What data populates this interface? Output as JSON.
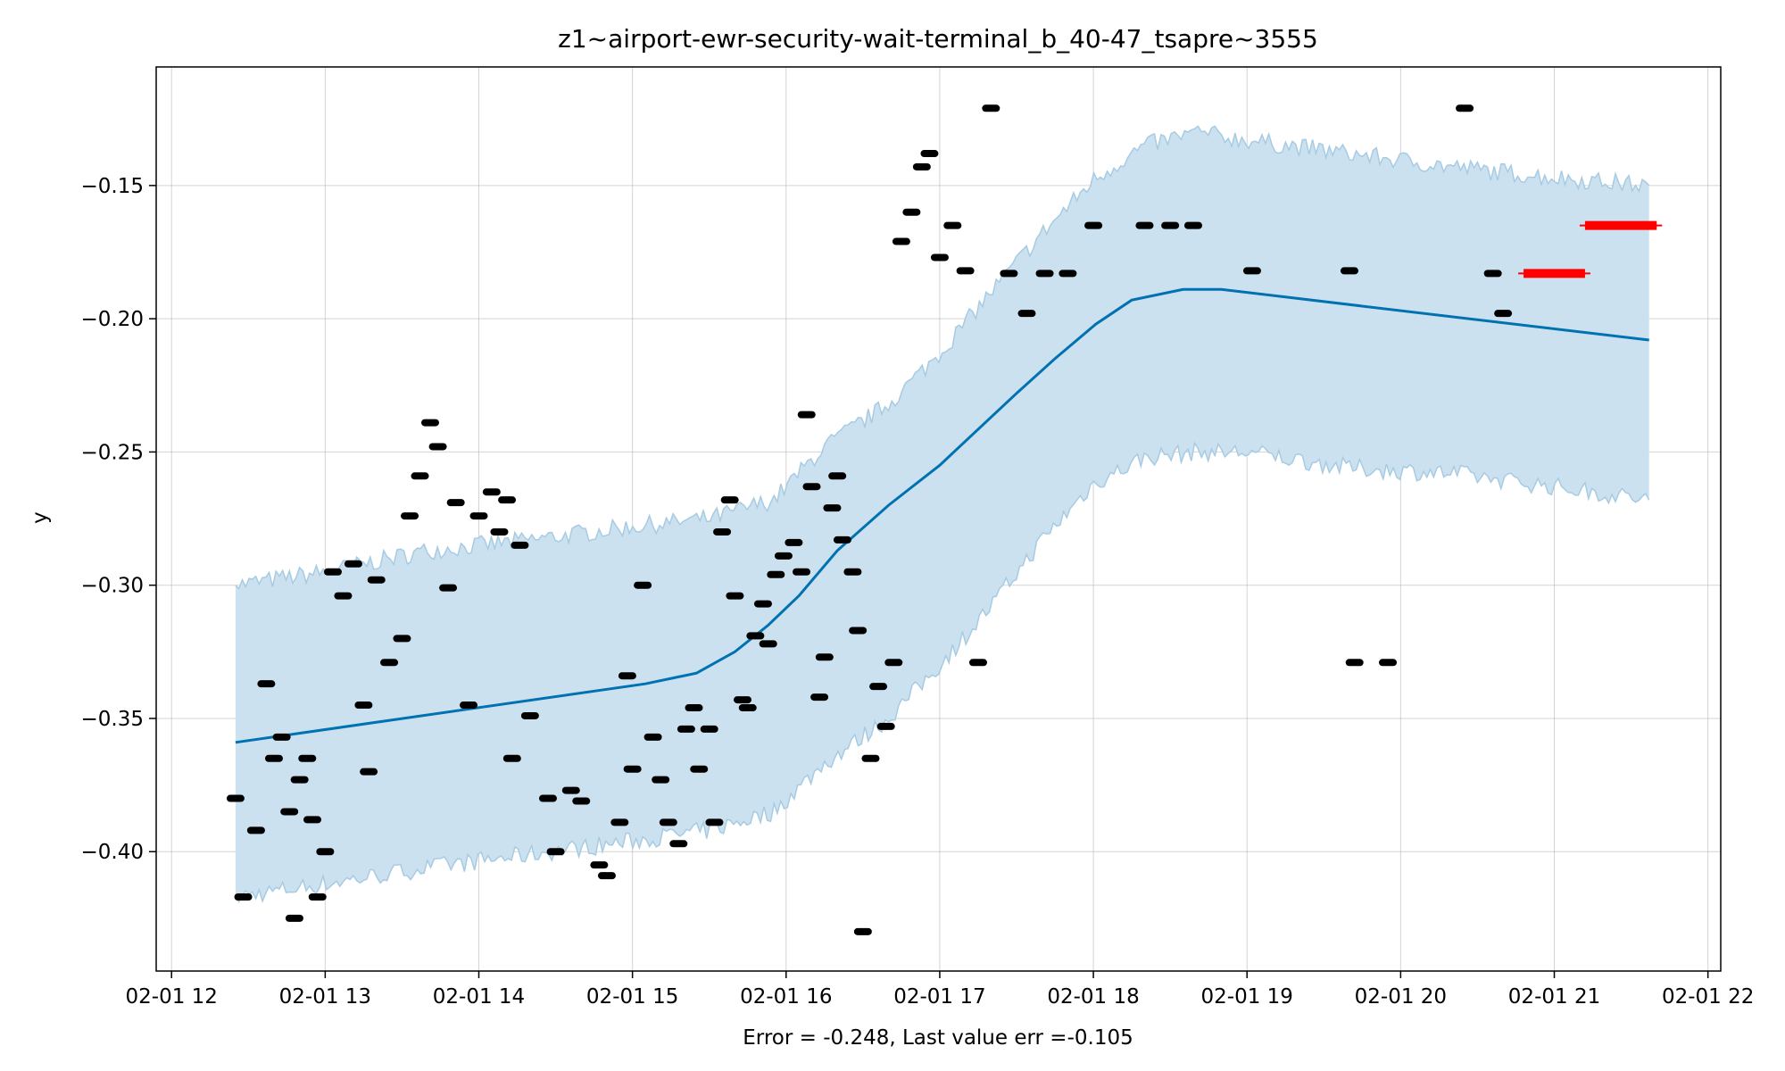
{
  "chart_data": {
    "type": "line",
    "title": "z1~airport-ewr-security-wait-terminal_b_40-47_tsapre~3555",
    "xlabel": "Error = -0.248, Last value err =-0.105",
    "ylabel": "y",
    "x_unit": "date-hour",
    "xlim": [
      "02-01 11:54",
      "02-01 22:05"
    ],
    "ylim": [
      -0.4448,
      -0.1055
    ],
    "x_ticks": [
      "02-01 12",
      "02-01 13",
      "02-01 14",
      "02-01 15",
      "02-01 16",
      "02-01 17",
      "02-01 18",
      "02-01 19",
      "02-01 20",
      "02-01 21",
      "02-01 22"
    ],
    "y_ticks": [
      -0.4,
      -0.35,
      -0.3,
      -0.25,
      -0.2,
      -0.15
    ],
    "y_tick_labels": [
      "−0.40",
      "−0.35",
      "−0.30",
      "−0.25",
      "−0.20",
      "−0.15"
    ],
    "grid": true,
    "colors": {
      "forecast": "#0072B2",
      "band": "#a6cbe3",
      "band_fill": "#cce1ef",
      "actual": "#000000",
      "future": "#ff0000"
    },
    "forecast": {
      "name": "",
      "x": [
        "02-01 12:25",
        "02-01 15:05",
        "02-01 15:25",
        "02-01 15:40",
        "02-01 15:53",
        "02-01 16:05",
        "02-01 16:20",
        "02-01 16:40",
        "02-01 17:00",
        "02-01 17:30",
        "02-01 17:45",
        "02-01 18:01",
        "02-01 18:15",
        "02-01 18:35",
        "02-01 18:50",
        "02-01 21:37"
      ],
      "y": [
        -0.359,
        -0.337,
        -0.333,
        -0.325,
        -0.315,
        -0.304,
        -0.287,
        -0.27,
        -0.255,
        -0.228,
        -0.215,
        -0.202,
        -0.193,
        -0.189,
        -0.189,
        -0.208
      ]
    },
    "interval": {
      "x": [
        "02-01 12:25",
        "02-01 13:00",
        "02-01 13:40",
        "02-01 14:20",
        "02-01 15:00",
        "02-01 15:30",
        "02-01 15:55",
        "02-01 16:15",
        "02-01 16:40",
        "02-01 17:00",
        "02-01 17:20",
        "02-01 17:40",
        "02-01 18:00",
        "02-01 18:20",
        "02-01 18:40",
        "02-01 19:00",
        "02-01 19:40",
        "02-01 20:20",
        "02-01 21:00",
        "02-01 21:37"
      ],
      "upper": [
        -0.3,
        -0.295,
        -0.287,
        -0.283,
        -0.278,
        -0.275,
        -0.268,
        -0.248,
        -0.232,
        -0.213,
        -0.19,
        -0.168,
        -0.148,
        -0.135,
        -0.13,
        -0.133,
        -0.138,
        -0.143,
        -0.147,
        -0.15
      ],
      "lower": [
        -0.417,
        -0.412,
        -0.406,
        -0.401,
        -0.396,
        -0.392,
        -0.385,
        -0.367,
        -0.35,
        -0.33,
        -0.308,
        -0.283,
        -0.262,
        -0.252,
        -0.25,
        -0.25,
        -0.256,
        -0.258,
        -0.263,
        -0.268
      ]
    },
    "actual": {
      "name": "",
      "x": [
        "02-01 12:25",
        "02-01 12:28",
        "02-01 12:33",
        "02-01 12:37",
        "02-01 12:40",
        "02-01 12:43",
        "02-01 12:46",
        "02-01 12:48",
        "02-01 12:50",
        "02-01 12:53",
        "02-01 12:55",
        "02-01 12:57",
        "02-01 13:00",
        "02-01 13:03",
        "02-01 13:07",
        "02-01 13:11",
        "02-01 13:15",
        "02-01 13:17",
        "02-01 13:20",
        "02-01 13:25",
        "02-01 13:30",
        "02-01 13:33",
        "02-01 13:37",
        "02-01 13:41",
        "02-01 13:44",
        "02-01 13:48",
        "02-01 13:51",
        "02-01 13:56",
        "02-01 14:00",
        "02-01 14:05",
        "02-01 14:08",
        "02-01 14:11",
        "02-01 14:13",
        "02-01 14:16",
        "02-01 14:20",
        "02-01 14:27",
        "02-01 14:30",
        "02-01 14:36",
        "02-01 14:40",
        "02-01 14:47",
        "02-01 14:50",
        "02-01 14:55",
        "02-01 14:58",
        "02-01 15:00",
        "02-01 15:04",
        "02-01 15:08",
        "02-01 15:11",
        "02-01 15:14",
        "02-01 15:18",
        "02-01 15:21",
        "02-01 15:24",
        "02-01 15:26",
        "02-01 15:30",
        "02-01 15:32",
        "02-01 15:35",
        "02-01 15:38",
        "02-01 15:40",
        "02-01 15:43",
        "02-01 15:45",
        "02-01 15:48",
        "02-01 15:51",
        "02-01 15:53",
        "02-01 15:56",
        "02-01 15:59",
        "02-01 16:03",
        "02-01 16:06",
        "02-01 16:08",
        "02-01 16:10",
        "02-01 16:13",
        "02-01 16:15",
        "02-01 16:18",
        "02-01 16:20",
        "02-01 16:22",
        "02-01 16:26",
        "02-01 16:28",
        "02-01 16:30",
        "02-01 16:33",
        "02-01 16:36",
        "02-01 16:39",
        "02-01 16:42",
        "02-01 16:45",
        "02-01 16:49",
        "02-01 16:53",
        "02-01 16:56",
        "02-01 17:00",
        "02-01 17:05",
        "02-01 17:10",
        "02-01 17:15",
        "02-01 17:20",
        "02-01 17:27",
        "02-01 17:34",
        "02-01 17:41",
        "02-01 17:50",
        "02-01 18:00",
        "02-01 18:20",
        "02-01 18:30",
        "02-01 18:39",
        "02-01 19:02",
        "02-01 19:40",
        "02-01 19:42",
        "02-01 19:55",
        "02-01 20:25",
        "02-01 20:36",
        "02-01 20:40"
      ],
      "y": [
        -0.38,
        -0.417,
        -0.392,
        -0.337,
        -0.365,
        -0.357,
        -0.385,
        -0.425,
        -0.373,
        -0.365,
        -0.388,
        -0.417,
        -0.4,
        -0.295,
        -0.304,
        -0.292,
        -0.345,
        -0.37,
        -0.298,
        -0.329,
        -0.32,
        -0.274,
        -0.259,
        -0.239,
        -0.248,
        -0.301,
        -0.269,
        -0.345,
        -0.274,
        -0.265,
        -0.28,
        -0.268,
        -0.365,
        -0.285,
        -0.349,
        -0.38,
        -0.4,
        -0.377,
        -0.381,
        -0.405,
        -0.409,
        -0.389,
        -0.334,
        -0.369,
        -0.3,
        -0.357,
        -0.373,
        -0.389,
        -0.397,
        -0.354,
        -0.346,
        -0.369,
        -0.354,
        -0.389,
        -0.28,
        -0.268,
        -0.304,
        -0.343,
        -0.346,
        -0.319,
        -0.307,
        -0.322,
        -0.296,
        -0.289,
        -0.284,
        -0.295,
        -0.236,
        -0.263,
        -0.342,
        -0.327,
        -0.271,
        -0.259,
        -0.283,
        -0.295,
        -0.317,
        -0.43,
        -0.365,
        -0.338,
        -0.353,
        -0.329,
        -0.171,
        -0.16,
        -0.143,
        -0.138,
        -0.177,
        -0.165,
        -0.182,
        -0.329,
        -0.121,
        -0.183,
        -0.198,
        -0.183,
        -0.183,
        -0.165,
        -0.165,
        -0.165,
        -0.165,
        -0.182,
        -0.182,
        -0.329,
        -0.329,
        -0.121,
        -0.183,
        -0.198
      ]
    },
    "future": {
      "name": "",
      "segments": [
        {
          "x_start": "02-01 20:48",
          "x_end": "02-01 21:12",
          "y": -0.183
        },
        {
          "x_start": "02-01 21:12",
          "x_end": "02-01 21:40",
          "y": -0.165
        }
      ]
    }
  }
}
